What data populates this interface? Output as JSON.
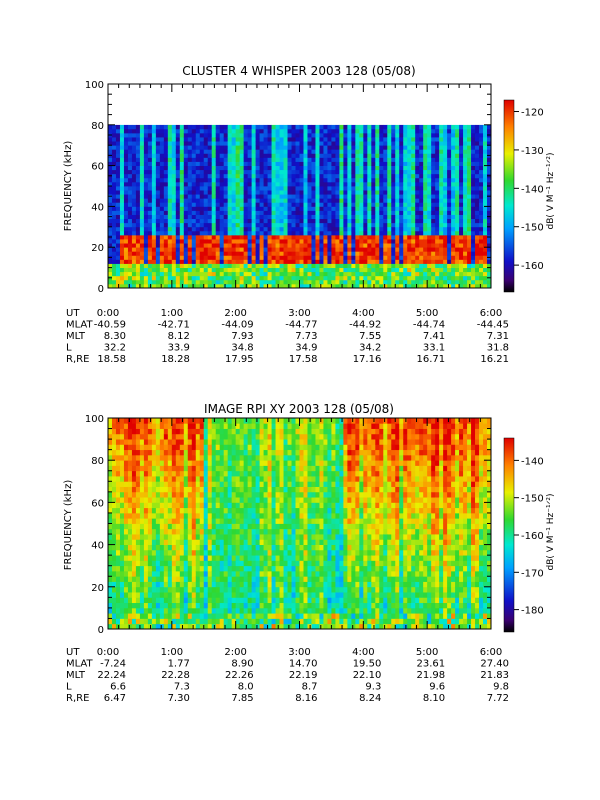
{
  "chart_data": [
    {
      "type": "heatmap",
      "title": "CLUSTER 4 WHISPER 2003 128 (05/08)",
      "ylabel": "FREQUENCY (kHz)",
      "ylim": [
        0,
        100
      ],
      "y_ticks": [
        "0",
        "20",
        "40",
        "60",
        "80",
        "100"
      ],
      "data_ylim": [
        0,
        80
      ],
      "colorbar": {
        "label": "dB( V M⁻¹ Hz⁻¹ᐟ²)",
        "range": [
          -167,
          -117
        ],
        "ticks": [
          "-120",
          "-130",
          "-140",
          "-150",
          "-160"
        ]
      },
      "spectrogram_features": {
        "background_db": -158,
        "band_low_khz": 12,
        "band_high_khz": 25,
        "band_db": -120,
        "diffuse_db": -140
      },
      "table": {
        "row_labels": [
          "UT",
          "MLAT",
          "MLT",
          "L",
          "R,RE"
        ],
        "columns": [
          [
            "0:00",
            "-40.59",
            "8.30",
            "32.2",
            "18.58"
          ],
          [
            "1:00",
            "-42.71",
            "8.12",
            "33.9",
            "18.28"
          ],
          [
            "2:00",
            "-44.09",
            "7.93",
            "34.8",
            "17.95"
          ],
          [
            "3:00",
            "-44.77",
            "7.73",
            "34.9",
            "17.58"
          ],
          [
            "4:00",
            "-44.92",
            "7.55",
            "34.2",
            "17.16"
          ],
          [
            "5:00",
            "-44.74",
            "7.41",
            "33.1",
            "16.71"
          ],
          [
            "6:00",
            "-44.45",
            "7.31",
            "31.8",
            "16.21"
          ]
        ]
      }
    },
    {
      "type": "heatmap",
      "title": "IMAGE RPI XY 2003 128 (05/08)",
      "ylabel": "FREQUENCY (kHz)",
      "ylim": [
        0,
        100
      ],
      "y_ticks": [
        "0",
        "20",
        "40",
        "60",
        "80",
        "100"
      ],
      "data_ylim": [
        0,
        100
      ],
      "colorbar": {
        "label": "dB( V M⁻¹ Hz⁻¹ᐟ²)",
        "range": [
          -186,
          -134
        ],
        "ticks": [
          "-140",
          "-150",
          "-160",
          "-170",
          "-180"
        ]
      },
      "spectrogram_features": {
        "background_db": -165,
        "high_freq_db": -138,
        "low_freq_db": -160
      },
      "table": {
        "row_labels": [
          "UT",
          "MLAT",
          "MLT",
          "L",
          "R,RE"
        ],
        "columns": [
          [
            "0:00",
            "-7.24",
            "22.24",
            "6.6",
            "6.47"
          ],
          [
            "1:00",
            "1.77",
            "22.28",
            "7.3",
            "7.30"
          ],
          [
            "2:00",
            "8.90",
            "22.26",
            "8.0",
            "7.85"
          ],
          [
            "3:00",
            "14.70",
            "22.19",
            "8.7",
            "8.16"
          ],
          [
            "4:00",
            "19.50",
            "22.10",
            "9.3",
            "8.24"
          ],
          [
            "5:00",
            "23.61",
            "21.98",
            "9.6",
            "8.10"
          ],
          [
            "6:00",
            "27.40",
            "21.83",
            "9.8",
            "7.72"
          ]
        ]
      }
    }
  ]
}
